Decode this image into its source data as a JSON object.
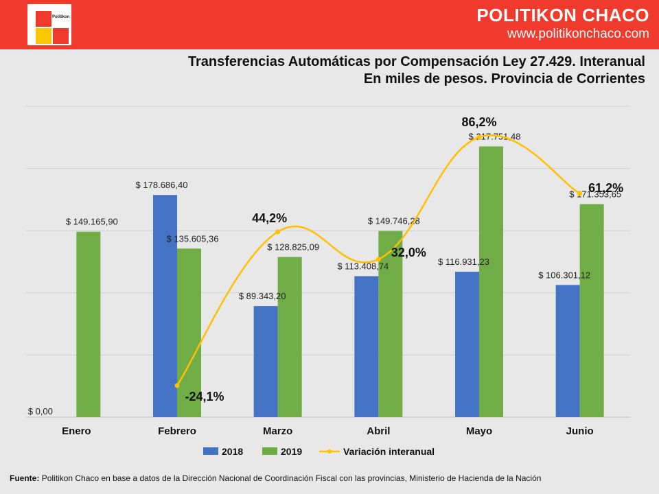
{
  "brand": {
    "name": "POLITIKON CHACO",
    "url": "www.politikonchaco.com",
    "logo_text": "Politikon"
  },
  "title": {
    "line1": "Transferencias Automáticas por Compensación Ley 27.429. Interanual",
    "line2": "En miles de pesos. Provincia de Corrientes"
  },
  "footer": {
    "label": "Fuente:",
    "text": "Politikon Chaco en base a datos de la Dirección Nacional de Coordinación Fiscal con las provincias, Ministerio de Hacienda de la Nación"
  },
  "colors": {
    "s2018": "#4472c4",
    "s2019": "#70ad47",
    "line": "#ffc000",
    "header": "#ef3a2d"
  },
  "chart_data": {
    "type": "bar",
    "categories": [
      "Enero",
      "Febrero",
      "Marzo",
      "Abril",
      "Mayo",
      "Junio"
    ],
    "ylim": [
      0,
      250000
    ],
    "grid": true,
    "legend_placement": "bottom",
    "series": [
      {
        "name": "2018",
        "values": [
          0,
          178686.4,
          89343.2,
          113408.74,
          116931.23,
          106301.12
        ],
        "labels": [
          "$ 0,00",
          "$ 178.686,40",
          "$ 89.343,20",
          "$ 113.408,74",
          "$ 116.931,23",
          "$ 106.301,12"
        ]
      },
      {
        "name": "2019",
        "values": [
          149165.9,
          135605.36,
          128825.09,
          149746.28,
          217751.48,
          171353.65
        ],
        "labels": [
          "$ 149.165,90",
          "$ 135.605,36",
          "$ 128.825,09",
          "$ 149.746,28",
          "$ 217.751,48",
          "$ 171.353,65"
        ]
      }
    ],
    "line_series": {
      "name": "Variación interanual",
      "values": [
        null,
        -24.1,
        44.2,
        32.0,
        86.2,
        61.2
      ],
      "labels": [
        "",
        "-24,1%",
        "44,2%",
        "32,0%",
        "86,2%",
        "61,2%"
      ]
    }
  }
}
